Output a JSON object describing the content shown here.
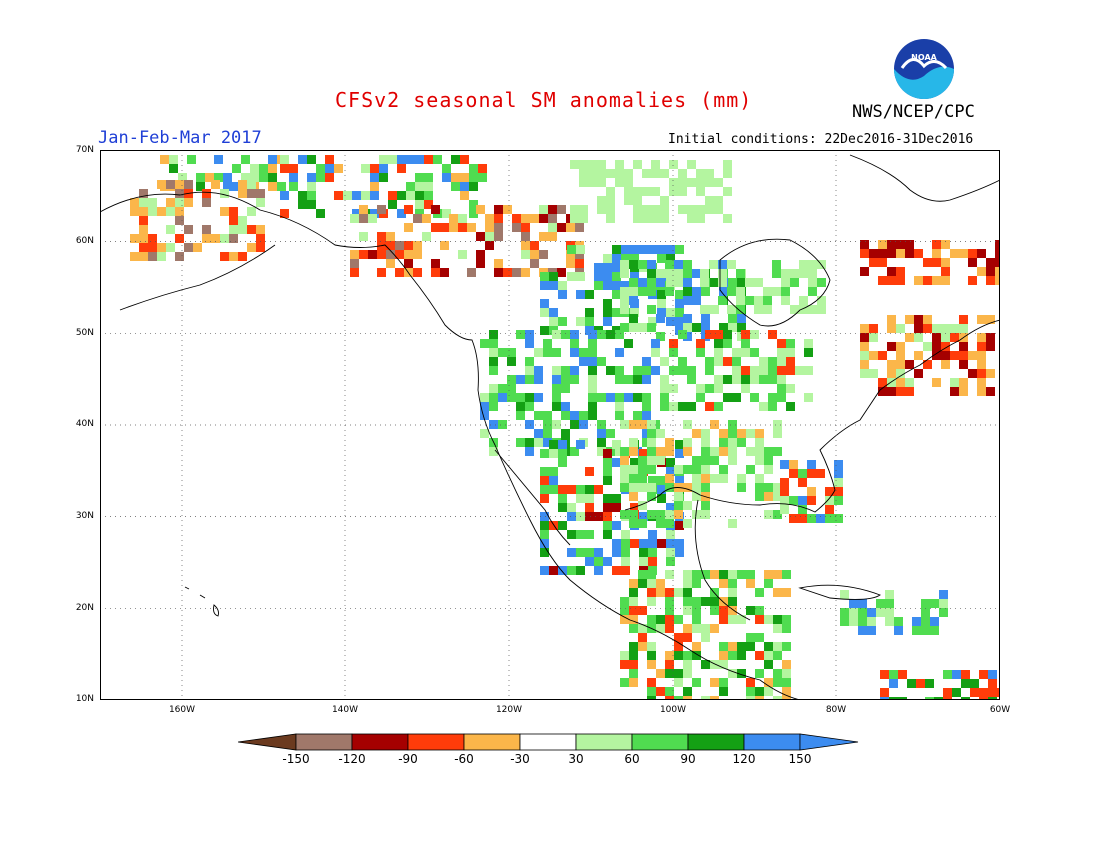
{
  "header": {
    "title": "CFSv2 seasonal SM anomalies (mm)",
    "period": "Jan-Feb-Mar 2017",
    "initial_conditions": "Initial conditions: 22Dec2016-31Dec2016",
    "agency": "NWS/NCEP/CPC",
    "logo_text": "NOAA"
  },
  "axes": {
    "lat_labels": [
      "70N",
      "60N",
      "50N",
      "40N",
      "30N",
      "20N",
      "10N"
    ],
    "lon_labels": [
      "160W",
      "140W",
      "120W",
      "100W",
      "80W",
      "60W"
    ]
  },
  "colorbar": {
    "labels": [
      "-150",
      "-120",
      "-90",
      "-60",
      "-30",
      "30",
      "60",
      "90",
      "120",
      "150"
    ],
    "colors": [
      "#6b3a1f",
      "#a0786a",
      "#a50000",
      "#e0280a",
      "#ff5a14",
      "#fbb64a",
      "#ffffff",
      "#b4f5a0",
      "#50dc50",
      "#14a014",
      "#3c8cf0",
      "#3c8cf0"
    ]
  },
  "colors": {
    "ocean": "#ffffff",
    "map_frame": "#000000",
    "grid": "#666666"
  }
}
